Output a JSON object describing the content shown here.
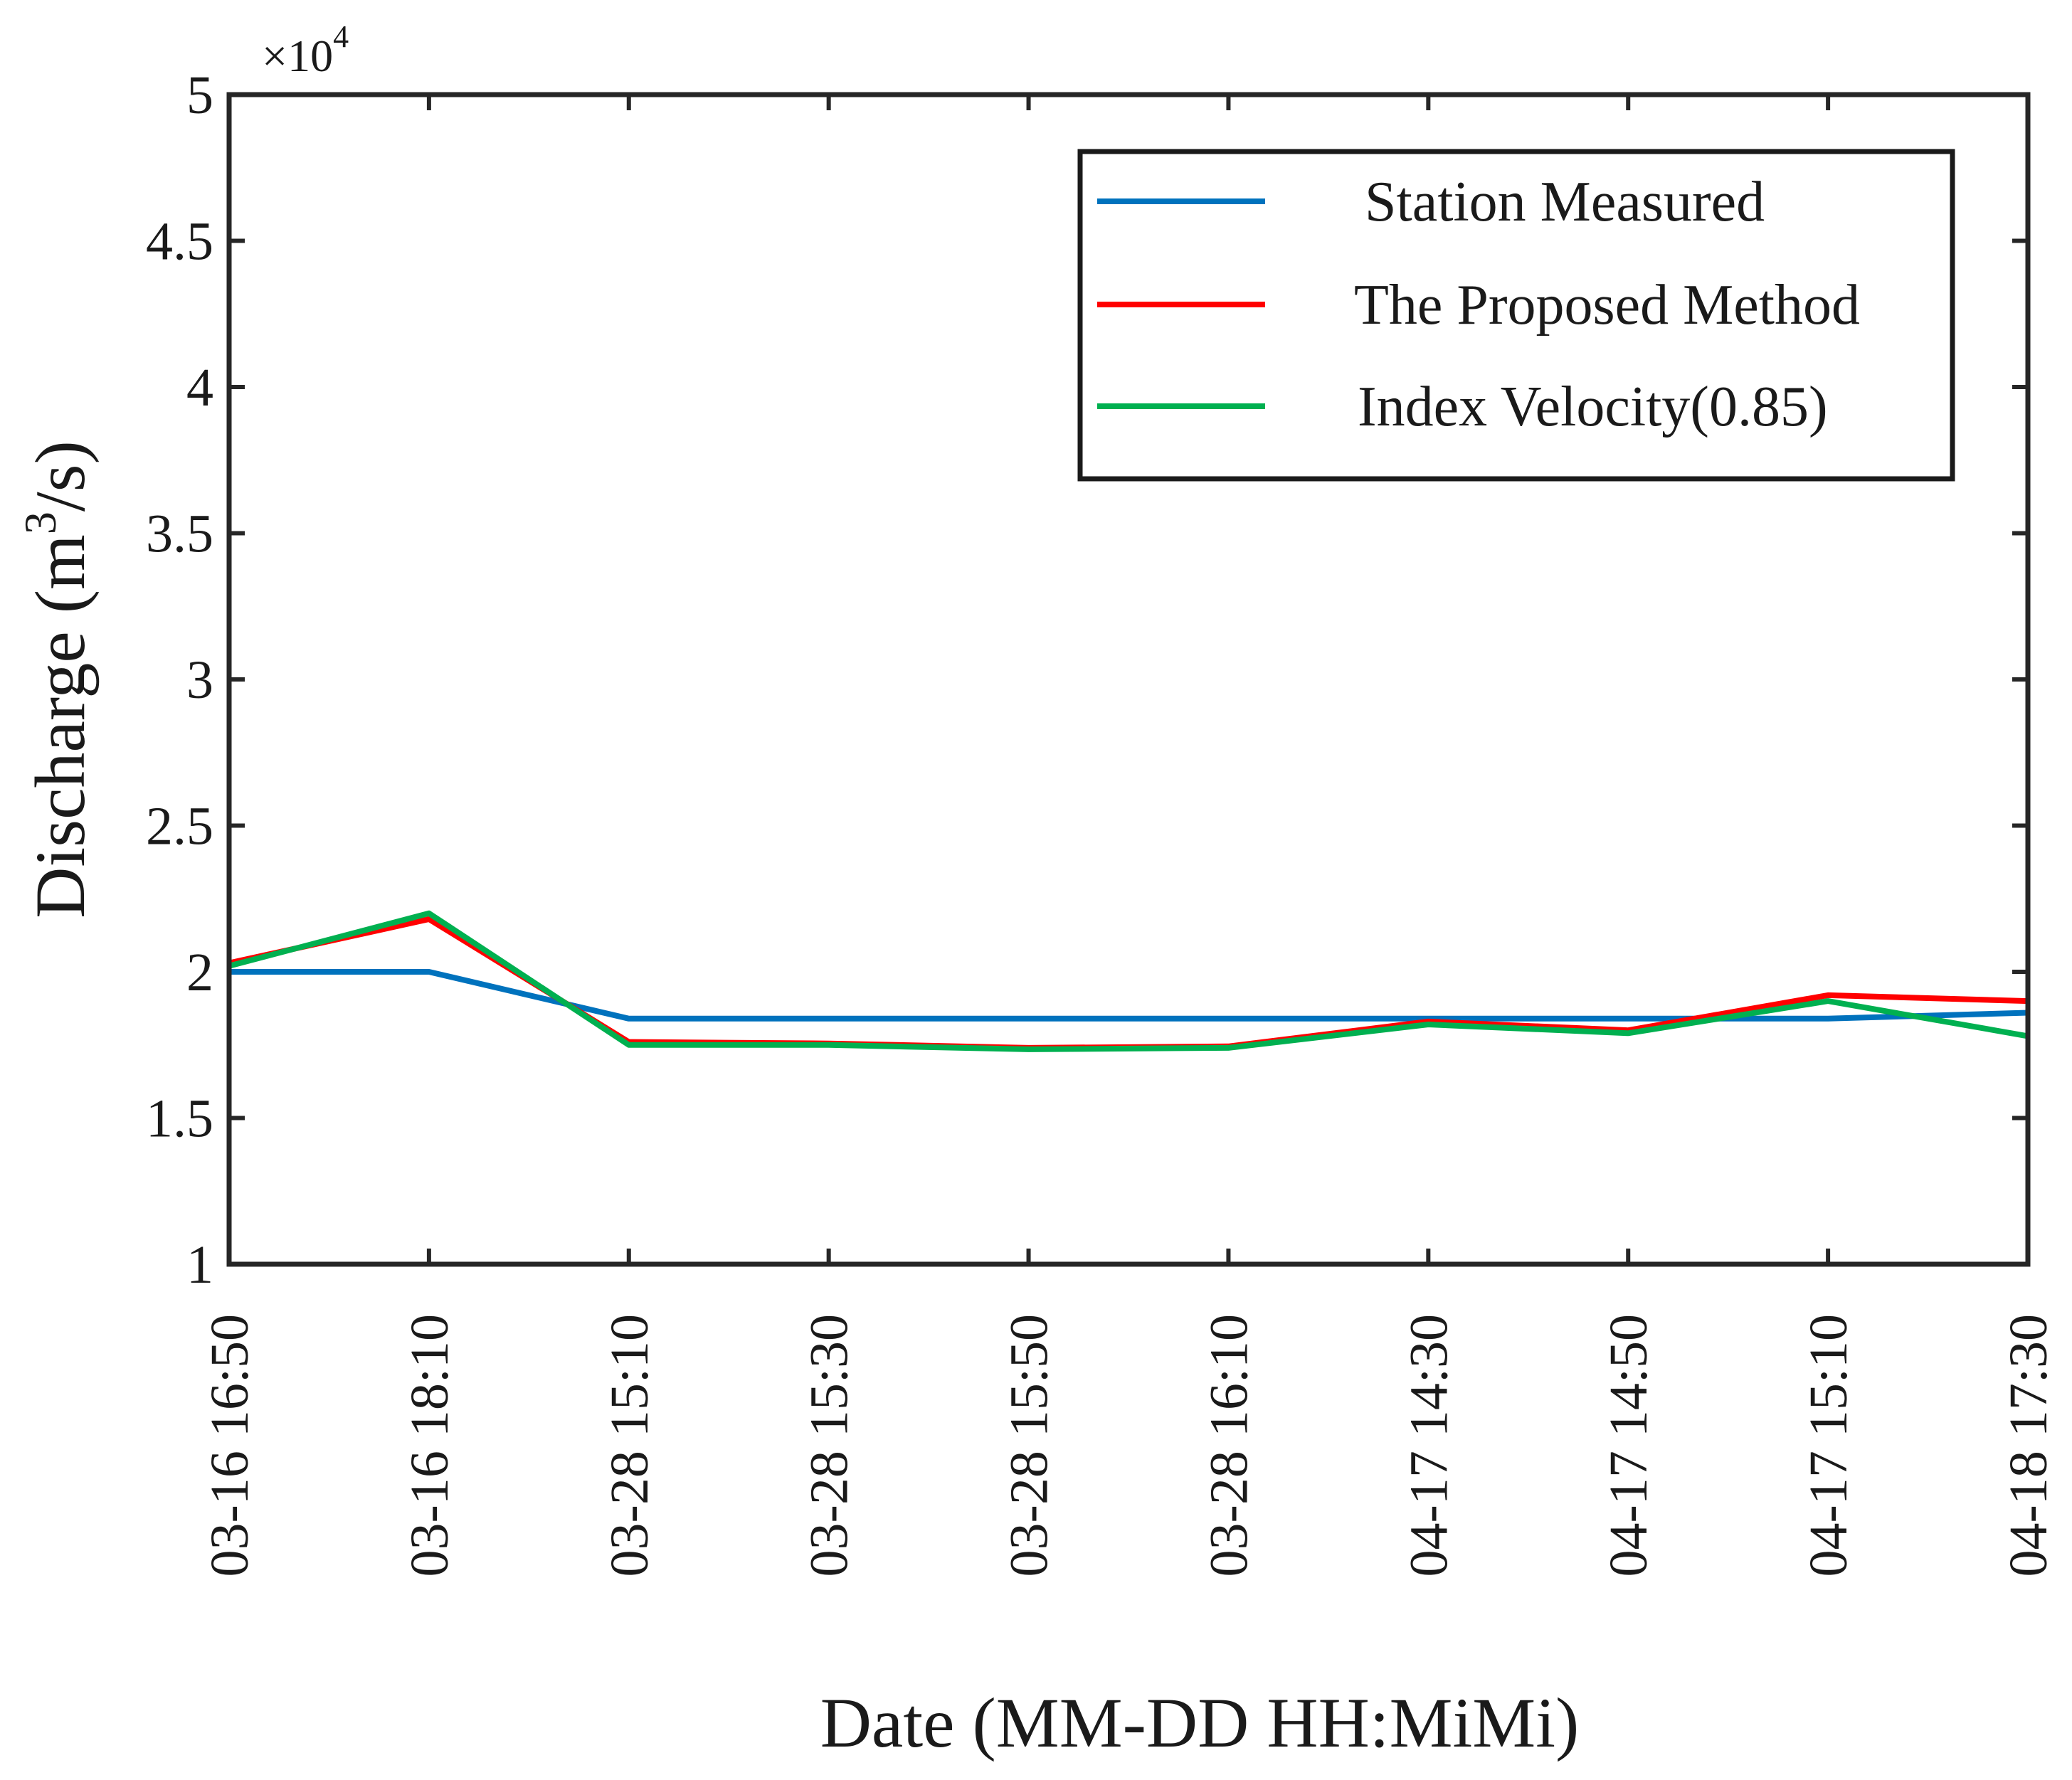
{
  "chart_data": {
    "type": "line",
    "title": "",
    "xlabel": "Date (MM-DD HH:MiMi)",
    "ylabel_main": "Discharge (m",
    "ylabel_sup": "3",
    "ylabel_tail": "/s)",
    "y_multiplier_base": "×10",
    "y_multiplier_exp": "4",
    "ylim": [
      1,
      5
    ],
    "yticks": [
      1,
      1.5,
      2,
      2.5,
      3,
      3.5,
      4,
      4.5,
      5
    ],
    "ytick_labels": [
      "1",
      "1.5",
      "2",
      "2.5",
      "3",
      "3.5",
      "4",
      "4.5",
      "5"
    ],
    "categories": [
      "03-16 16:50",
      "03-16 18:10",
      "03-28 15:10",
      "03-28 15:30",
      "03-28 15:50",
      "03-28 16:10",
      "04-17 14:30",
      "04-17 14:50",
      "04-17 15:10",
      "04-18 17:30"
    ],
    "legend_position": "top-right",
    "grid": false,
    "series": [
      {
        "name": "Station Measured",
        "color": "#0072BD",
        "values": [
          2.0,
          2.0,
          1.84,
          1.84,
          1.84,
          1.84,
          1.84,
          1.84,
          1.84,
          1.86
        ]
      },
      {
        "name": "The Proposed Method",
        "color": "#FF0000",
        "values": [
          2.03,
          2.18,
          1.76,
          1.755,
          1.74,
          1.745,
          1.83,
          1.8,
          1.92,
          1.9
        ]
      },
      {
        "name": "Index Velocity(0.85)",
        "color": "#00B050",
        "values": [
          2.02,
          2.2,
          1.75,
          1.75,
          1.735,
          1.74,
          1.82,
          1.79,
          1.9,
          1.78
        ]
      }
    ]
  }
}
